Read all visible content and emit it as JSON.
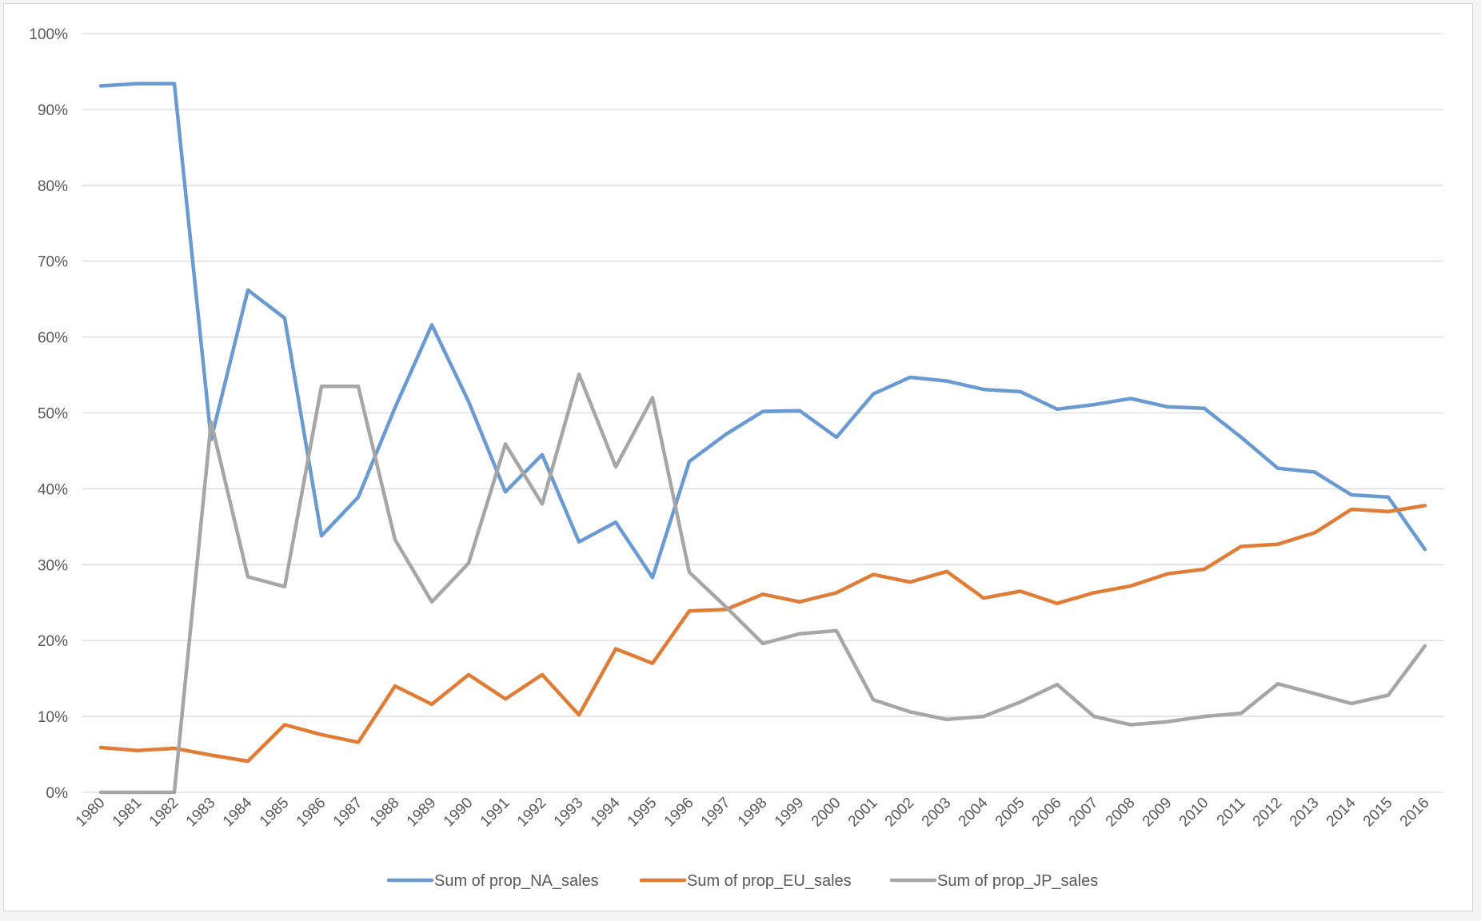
{
  "chart_data": {
    "type": "line",
    "title": "",
    "xlabel": "",
    "ylabel": "",
    "ylim": [
      0,
      100
    ],
    "y_tick_suffix": "%",
    "y_ticks": [
      0,
      10,
      20,
      30,
      40,
      50,
      60,
      70,
      80,
      90,
      100
    ],
    "grid": true,
    "legend_position": "bottom",
    "categories": [
      "1980",
      "1981",
      "1982",
      "1983",
      "1984",
      "1985",
      "1986",
      "1987",
      "1988",
      "1989",
      "1990",
      "1991",
      "1992",
      "1993",
      "1994",
      "1995",
      "1996",
      "1997",
      "1998",
      "1999",
      "2000",
      "2001",
      "2002",
      "2003",
      "2004",
      "2005",
      "2006",
      "2007",
      "2008",
      "2009",
      "2010",
      "2011",
      "2012",
      "2013",
      "2014",
      "2015",
      "2016"
    ],
    "series": [
      {
        "name": "Sum of prop_NA_sales",
        "color": "#6a9ad2",
        "values": [
          93.1,
          93.4,
          93.4,
          46.5,
          66.2,
          62.5,
          33.8,
          38.9,
          50.7,
          61.6,
          51.5,
          39.6,
          44.5,
          33.0,
          35.6,
          28.3,
          43.6,
          47.2,
          50.2,
          50.3,
          46.8,
          52.5,
          54.7,
          54.2,
          53.1,
          52.8,
          50.5,
          51.1,
          51.9,
          50.8,
          50.6,
          46.8,
          42.7,
          42.2,
          39.2,
          38.9,
          32.0
        ]
      },
      {
        "name": "Sum of prop_EU_sales",
        "color": "#e07c35",
        "values": [
          5.9,
          5.5,
          5.8,
          4.9,
          4.1,
          8.9,
          7.6,
          6.6,
          14.0,
          11.6,
          15.5,
          12.3,
          15.5,
          10.2,
          18.9,
          17.0,
          23.9,
          24.1,
          26.1,
          25.1,
          26.3,
          28.7,
          27.7,
          29.1,
          25.6,
          26.5,
          24.9,
          26.3,
          27.2,
          28.8,
          29.4,
          32.4,
          32.7,
          34.2,
          37.3,
          37.0,
          37.8
        ]
      },
      {
        "name": "Sum of prop_JP_sales",
        "color": "#a6a6a6",
        "values": [
          0.0,
          0.0,
          0.0,
          48.8,
          28.4,
          27.1,
          53.5,
          53.5,
          33.3,
          25.1,
          30.2,
          45.9,
          38.0,
          55.1,
          42.9,
          52.0,
          29.0,
          24.4,
          19.6,
          20.9,
          21.3,
          12.2,
          10.6,
          9.6,
          10.0,
          11.9,
          14.2,
          10.0,
          8.9,
          9.3,
          10.0,
          10.4,
          14.3,
          13.0,
          11.7,
          12.8,
          19.3
        ]
      }
    ]
  }
}
